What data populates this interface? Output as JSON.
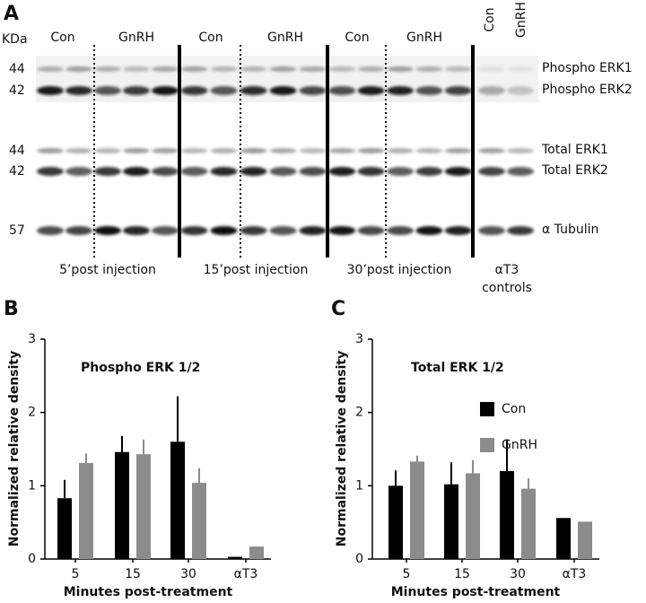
{
  "figure": {
    "panel_labels": [
      "A",
      "B",
      "C"
    ],
    "blot": {
      "kda_label": "KDa",
      "columns": [
        "Con",
        "GnRH",
        "Con",
        "GnRH",
        "Con",
        "GnRH"
      ],
      "control_columns": [
        "Con",
        "GnRH"
      ],
      "markers": [
        44,
        42,
        44,
        42,
        57
      ],
      "bands": [
        "Phospho ERK1",
        "Phospho ERK2",
        "Total ERK1",
        "Total ERK2",
        "α Tubulin"
      ],
      "groups": [
        "5’post injection",
        "15’post injection",
        "30’post injection"
      ],
      "control_group": [
        "αT3",
        "controls"
      ]
    }
  },
  "chart_data": [
    {
      "type": "bar",
      "title": "Phospho ERK 1/2",
      "y_label": "Normalized relative density",
      "x_label": "Minutes post-treatment",
      "categories": [
        "5",
        "15",
        "30",
        "αT3"
      ],
      "series": [
        {
          "name": "Con",
          "color": "#000000",
          "values": [
            0.83,
            1.46,
            1.6,
            0.03
          ],
          "errors": [
            0.25,
            0.22,
            0.62,
            null
          ]
        },
        {
          "name": "GnRH",
          "color": "#8c8c8c",
          "values": [
            1.31,
            1.43,
            1.04,
            0.17
          ],
          "errors": [
            0.13,
            0.2,
            0.2,
            null
          ]
        }
      ],
      "ylim": [
        0,
        3
      ],
      "yticks": [
        0,
        1,
        2,
        3
      ]
    },
    {
      "type": "bar",
      "title": "Total ERK 1/2",
      "y_label": "Normalized relative density",
      "x_label": "Minutes post-treatment",
      "categories": [
        "5",
        "15",
        "30",
        "αT3"
      ],
      "series": [
        {
          "name": "Con",
          "color": "#000000",
          "values": [
            1.0,
            1.02,
            1.2,
            0.56
          ],
          "errors": [
            0.21,
            0.3,
            0.43,
            null
          ]
        },
        {
          "name": "GnRH",
          "color": "#8c8c8c",
          "values": [
            1.33,
            1.17,
            0.96,
            0.51
          ],
          "errors": [
            0.08,
            0.18,
            0.14,
            null
          ]
        }
      ],
      "ylim": [
        0,
        3
      ],
      "yticks": [
        0,
        1,
        2,
        3
      ],
      "legend": "upper right"
    }
  ]
}
